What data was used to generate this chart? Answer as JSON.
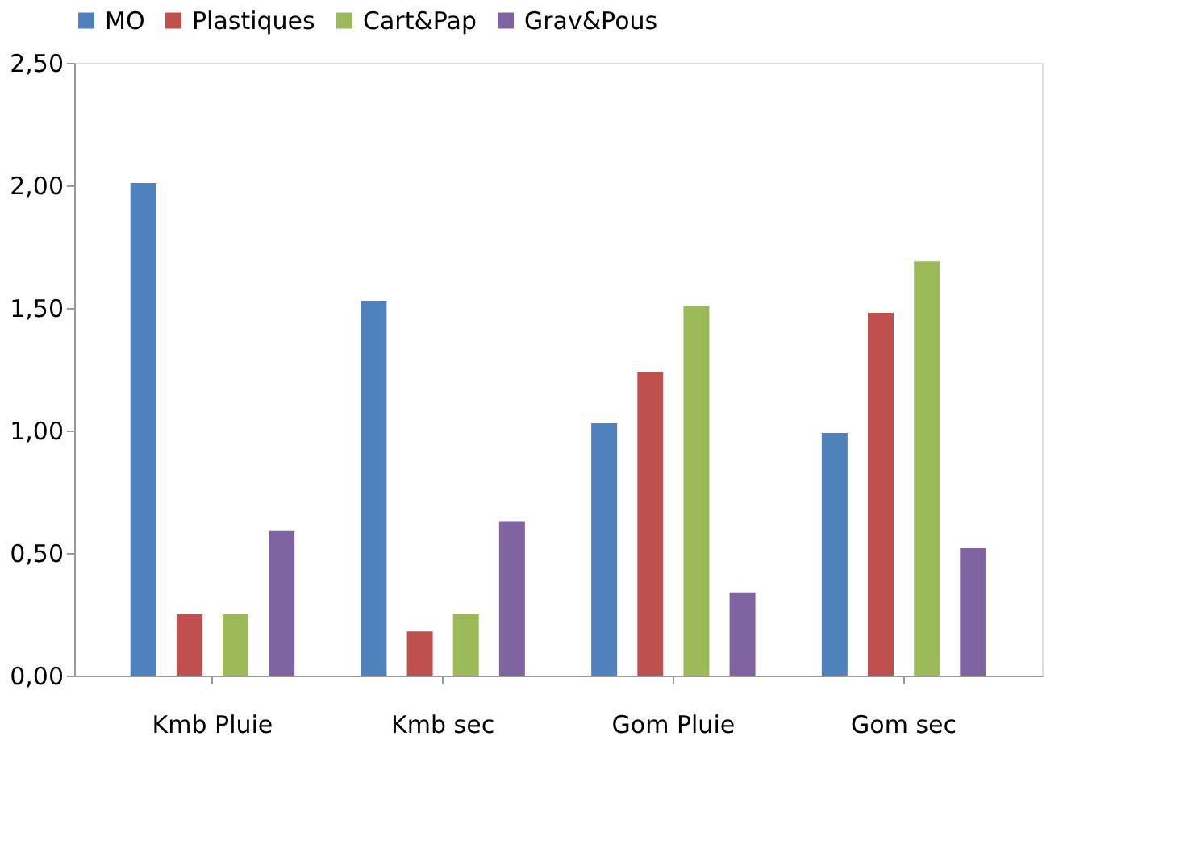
{
  "chart_data": {
    "type": "bar",
    "categories": [
      "Kmb Pluie",
      "Kmb sec",
      "Gom Pluie",
      "Gom sec"
    ],
    "series": [
      {
        "name": "MO",
        "color": "#4f81bd",
        "values": [
          2.01,
          1.53,
          1.03,
          0.99
        ]
      },
      {
        "name": "Plastiques",
        "color": "#c0504d",
        "values": [
          0.25,
          0.18,
          1.24,
          1.48
        ]
      },
      {
        "name": "Cart&Pap",
        "color": "#9bbb59",
        "values": [
          0.25,
          0.25,
          1.51,
          1.69
        ]
      },
      {
        "name": "Grav&Pous",
        "color": "#8064a2",
        "values": [
          0.59,
          0.63,
          0.34,
          0.52
        ]
      }
    ],
    "ylim": [
      0,
      2.5
    ],
    "yticks": [
      {
        "value": 0,
        "label": "0,00"
      },
      {
        "value": 0.5,
        "label": "0,50"
      },
      {
        "value": 1,
        "label": "1,00"
      },
      {
        "value": 1.5,
        "label": "1,50"
      },
      {
        "value": 2,
        "label": "2,00"
      },
      {
        "value": 2.5,
        "label": "2,50"
      }
    ],
    "grid": false,
    "legend": "top"
  }
}
